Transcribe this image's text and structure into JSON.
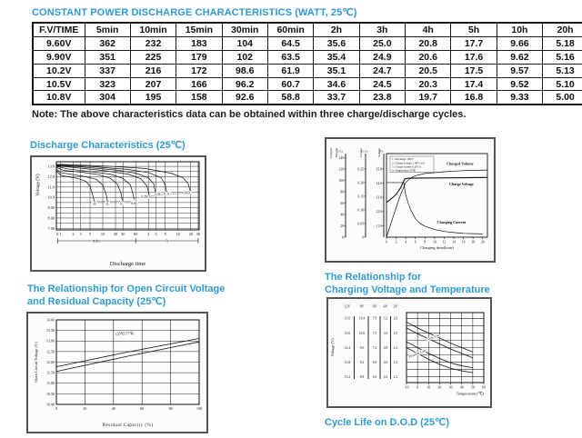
{
  "colors": {
    "accent": "#2E9AD6",
    "ink": "#111111"
  },
  "titles": {
    "page": "CONSTANT POWER DISCHARGE CHARACTERISTICS (WATT, 25℃)",
    "discharge": "Discharge Characteristics (25℃)",
    "ocv_line1": "The Relationship for Open Circuit Voltage",
    "ocv_line2": "and Residual Capacity (25℃)",
    "temp_line1": "The Relationship for",
    "temp_line2": "Charging Voltage and Temperature",
    "cycle_life": "Cycle Life on D.O.D (25℃)"
  },
  "note": "Note: The above characteristics data can be obtained within three charge/discharge cycles.",
  "table": {
    "headers": [
      "F.V/TIME",
      "5min",
      "10min",
      "15min",
      "30min",
      "60min",
      "2h",
      "3h",
      "4h",
      "5h",
      "10h",
      "20h"
    ],
    "rows": [
      [
        "9.60V",
        "362",
        "232",
        "183",
        "104",
        "64.5",
        "35.6",
        "25.0",
        "20.8",
        "17.7",
        "9.66",
        "5.18"
      ],
      [
        "9.90V",
        "351",
        "225",
        "179",
        "102",
        "63.5",
        "35.4",
        "24.9",
        "20.6",
        "17.6",
        "9.62",
        "5.16"
      ],
      [
        "10.2V",
        "337",
        "216",
        "172",
        "98.6",
        "61.9",
        "35.1",
        "24.7",
        "20.5",
        "17.5",
        "9.57",
        "5.13"
      ],
      [
        "10.5V",
        "323",
        "207",
        "166",
        "96.2",
        "60.7",
        "34.6",
        "24.5",
        "20.3",
        "17.4",
        "9.52",
        "5.10"
      ],
      [
        "10.8V",
        "304",
        "195",
        "158",
        "92.6",
        "58.8",
        "33.7",
        "23.8",
        "19.7",
        "16.8",
        "9.33",
        "5.00"
      ]
    ]
  },
  "chart_data": [
    {
      "id": "discharge",
      "type": "line",
      "title": "Discharge Characteristics (25℃)",
      "xlabel": "Discharge time",
      "ylabel": "Voltage (V)",
      "x_sections": [
        "min",
        "h"
      ],
      "origin_label": "0",
      "x_ticks": [
        {
          "t": 1,
          "label": "1"
        },
        {
          "t": 2,
          "label": "2"
        },
        {
          "t": 3,
          "label": "3"
        },
        {
          "t": 5,
          "label": "5"
        },
        {
          "t": 10,
          "label": "10"
        },
        {
          "t": 20,
          "label": "20"
        },
        {
          "t": 30,
          "label": "30"
        },
        {
          "t": 60,
          "label": "60"
        },
        {
          "t": 120,
          "label": "2"
        },
        {
          "t": 180,
          "label": "3"
        },
        {
          "t": 300,
          "label": "5"
        },
        {
          "t": 600,
          "label": "10"
        },
        {
          "t": 1200,
          "label": "20"
        },
        {
          "t": 1800,
          "label": "30"
        }
      ],
      "y_ticks": [
        {
          "v": 13,
          "label": "13.0"
        },
        {
          "v": 12,
          "label": "12.0"
        },
        {
          "v": 11,
          "label": "11.0"
        },
        {
          "v": 10,
          "label": "10.0"
        },
        {
          "v": 9,
          "label": "9.00"
        },
        {
          "v": 8,
          "label": "8.00"
        },
        {
          "v": 7,
          "label": "7.00"
        }
      ],
      "ylim": [
        6.85,
        13.45
      ],
      "series": [
        {
          "name": "3C",
          "points": [
            [
              0.8,
              12.6
            ],
            [
              1,
              12.15
            ],
            [
              1.5,
              12.0
            ],
            [
              2.5,
              11.85
            ],
            [
              4,
              11.55
            ],
            [
              5,
              11.1
            ],
            [
              5.8,
              10.2
            ],
            [
              6.3,
              9.6
            ]
          ]
        },
        {
          "name": "2C",
          "points": [
            [
              0.8,
              12.75
            ],
            [
              1,
              12.4
            ],
            [
              2,
              12.2
            ],
            [
              4,
              12.0
            ],
            [
              7,
              11.75
            ],
            [
              10,
              11.2
            ],
            [
              12,
              10.3
            ],
            [
              13,
              9.6
            ]
          ]
        },
        {
          "name": "1C",
          "points": [
            [
              0.8,
              12.9
            ],
            [
              1.2,
              12.6
            ],
            [
              3,
              12.45
            ],
            [
              8,
              12.2
            ],
            [
              15,
              11.85
            ],
            [
              22,
              11.3
            ],
            [
              27,
              10.4
            ],
            [
              29,
              9.7
            ]
          ]
        },
        {
          "name": "0.6C",
          "points": [
            [
              0.8,
              13.0
            ],
            [
              1.5,
              12.75
            ],
            [
              5,
              12.5
            ],
            [
              15,
              12.25
            ],
            [
              30,
              11.85
            ],
            [
              45,
              11.2
            ],
            [
              52,
              10.3
            ],
            [
              55,
              9.8
            ]
          ]
        },
        {
          "name": "0.25C",
          "points": [
            [
              0.8,
              13.05
            ],
            [
              2,
              12.9
            ],
            [
              10,
              12.6
            ],
            [
              40,
              12.25
            ],
            [
              80,
              11.8
            ],
            [
              110,
              11.1
            ],
            [
              125,
              10.3
            ],
            [
              131,
              10.0
            ]
          ]
        },
        {
          "name": "0.2C",
          "points": [
            [
              0.8,
              13.1
            ],
            [
              3,
              12.95
            ],
            [
              20,
              12.65
            ],
            [
              60,
              12.35
            ],
            [
              120,
              11.9
            ],
            [
              160,
              11.3
            ],
            [
              175,
              10.5
            ],
            [
              181,
              10.25
            ]
          ]
        },
        {
          "name": "0.1C",
          "points": [
            [
              0.8,
              13.15
            ],
            [
              5,
              13.0
            ],
            [
              40,
              12.7
            ],
            [
              120,
              12.4
            ],
            [
              240,
              11.9
            ],
            [
              300,
              11.2
            ],
            [
              322,
              10.6
            ],
            [
              332,
              10.35
            ]
          ]
        },
        {
          "name": "0.05C",
          "points": [
            [
              0.8,
              13.2
            ],
            [
              10,
              13.05
            ],
            [
              100,
              12.8
            ],
            [
              400,
              12.35
            ],
            [
              800,
              11.9
            ],
            [
              1050,
              11.3
            ],
            [
              1150,
              10.7
            ],
            [
              1210,
              10.45
            ]
          ]
        }
      ],
      "curve_labels": [
        {
          "t": 6.5,
          "v": 9.4,
          "text": "3C"
        },
        {
          "t": 13,
          "v": 9.4,
          "text": "2C"
        },
        {
          "t": 28,
          "v": 9.4,
          "text": "1C"
        },
        {
          "t": 56,
          "v": 9.45,
          "text": "0.6C"
        },
        {
          "t": 100,
          "v": 10.05,
          "text": "0.25C"
        },
        {
          "t": 205,
          "v": 10.3,
          "text": "0.2C"
        },
        {
          "t": 335,
          "v": 10.35,
          "text": "0.1C"
        },
        {
          "t": 1000,
          "v": 10.45,
          "text": "0.05C"
        }
      ],
      "dotted_guides": [
        [
          [
            6.5,
            9.6
          ],
          [
            56,
            9.6
          ]
        ],
        [
          [
            110,
            10.1
          ],
          [
            1050,
            10.45
          ]
        ]
      ]
    },
    {
      "id": "charging",
      "type": "line",
      "xlabel": "Charging time(hour)",
      "x_ticks": [
        0,
        2,
        4,
        6,
        8,
        10,
        12,
        14,
        16,
        18,
        20
      ],
      "axes": [
        {
          "name1": "Charged",
          "name2": "Volume",
          "unit": "(%)",
          "ticks": [
            "0",
            "20",
            "40",
            "60",
            "80",
            "100",
            "120",
            "140"
          ]
        },
        {
          "name1": "Current",
          "name2": "",
          "unit": "(CA)",
          "ticks": [
            "0",
            "0.05",
            "0.10",
            "0.15",
            "0.20",
            "0.25"
          ]
        },
        {
          "name1": "Voltage",
          "name2": "",
          "unit": "(V)",
          "ticks": [
            "11.0",
            "12.0",
            "13.0",
            "14.0",
            "15.0"
          ]
        }
      ],
      "notes": [
        "1. Discharge 100%",
        "2. Charge voltage 2.40V/cell",
        "3. Charge current 0.20CA",
        "4. Temperature 25℃"
      ],
      "series": [
        {
          "name": "Charged Volume",
          "axis": "vol",
          "points": [
            [
              0,
              0
            ],
            [
              1,
              26
            ],
            [
              2,
              52
            ],
            [
              3,
              76
            ],
            [
              4,
              96
            ],
            [
              5,
              104
            ],
            [
              6,
              108
            ],
            [
              8,
              112
            ],
            [
              12,
              115
            ],
            [
              16,
              117
            ],
            [
              21,
              118
            ]
          ]
        },
        {
          "name": "Charge Voltage",
          "axis": "volt",
          "points": [
            [
              0,
              12.65
            ],
            [
              1,
              12.9
            ],
            [
              2,
              13.2
            ],
            [
              3,
              13.7
            ],
            [
              3.8,
              14.3
            ],
            [
              4.5,
              14.35
            ],
            [
              21,
              14.4
            ]
          ]
        },
        {
          "name": "Charging Current",
          "axis": "cur",
          "points": [
            [
              0,
              0.2
            ],
            [
              3.6,
              0.2
            ],
            [
              4,
              0.155
            ],
            [
              4.5,
              0.125
            ],
            [
              5,
              0.102
            ],
            [
              6,
              0.068
            ],
            [
              7,
              0.05
            ],
            [
              8,
              0.04
            ],
            [
              10,
              0.028
            ],
            [
              12,
              0.021
            ],
            [
              14,
              0.017
            ],
            [
              16,
              0.014
            ],
            [
              18,
              0.013
            ],
            [
              20,
              0.012
            ]
          ]
        }
      ],
      "series_labels": [
        {
          "text": "Charged Volume",
          "x": 12.5,
          "axis": "vol",
          "v": 127
        },
        {
          "text": "Charge Voltage",
          "x": 13,
          "axis": "volt",
          "v": 13.85
        },
        {
          "text": "Charging Current",
          "x": 10.5,
          "axis": "cur",
          "v": 0.05
        }
      ]
    },
    {
      "id": "ocv",
      "type": "line",
      "title": "The Relationship for Open Circuit Voltage and Residual Capacity (25℃)",
      "xlabel": "Residual Capacity (%)",
      "ylabel": "Open Circuit Voltage (V)",
      "annotation": "(25℃/77℉)",
      "x_ticks": [
        0,
        20,
        40,
        60,
        80,
        100
      ],
      "y_ticks": [
        "14.00",
        "13.50",
        "13.00",
        "12.50",
        "12.00",
        "11.50",
        "11.00",
        "10.50",
        "10.00"
      ],
      "ylim": [
        10,
        14
      ],
      "series": [
        {
          "name": "upper",
          "points": [
            [
              0,
              11.78
            ],
            [
              50,
              12.48
            ],
            [
              100,
              13.12
            ]
          ]
        },
        {
          "name": "lower",
          "points": [
            [
              0,
              11.56
            ],
            [
              50,
              12.28
            ],
            [
              100,
              12.96
            ]
          ]
        }
      ]
    },
    {
      "id": "temp",
      "type": "line",
      "title": "The Relationship for Charging Voltage and Temperature",
      "xlabel": "Temperature (℃)",
      "ylabel": "Voltage (V)",
      "x_ticks": [
        -10,
        0,
        10,
        20,
        30,
        40,
        50,
        60
      ],
      "scale_headers": [
        "12V",
        "8V",
        "6V",
        "4V",
        "2V"
      ],
      "scale_rows": [
        [
          "15.6",
          "10.4",
          "7.8",
          "5.2",
          "2.6"
        ],
        [
          "15.0",
          "10.0",
          "7.5",
          "5.0",
          "2.5"
        ],
        [
          "14.4",
          "9.6",
          "7.2",
          "4.8",
          "2.4"
        ],
        [
          "13.8",
          "9.2",
          "6.9",
          "4.6",
          "2.3"
        ],
        [
          "13.2",
          "8.8",
          "6.6",
          "4.4",
          "2.2"
        ]
      ],
      "band_labels": [
        {
          "text": "Cycle Use",
          "t": 14,
          "v": 2.462
        },
        {
          "text": "Floating Use",
          "t": 0,
          "v": 2.352
        }
      ],
      "series": [
        {
          "name": "cycle-upper",
          "points": [
            [
              -10,
              2.575
            ],
            [
              0,
              2.535
            ],
            [
              10,
              2.5
            ],
            [
              20,
              2.465
            ],
            [
              30,
              2.43
            ],
            [
              40,
              2.4
            ],
            [
              50,
              2.37
            ]
          ]
        },
        {
          "name": "cycle-lower",
          "points": [
            [
              -10,
              2.535
            ],
            [
              0,
              2.495
            ],
            [
              10,
              2.46
            ],
            [
              20,
              2.425
            ],
            [
              30,
              2.39
            ],
            [
              40,
              2.36
            ],
            [
              50,
              2.33
            ]
          ]
        },
        {
          "name": "float-upper",
          "points": [
            [
              -10,
              2.44
            ],
            [
              0,
              2.4
            ],
            [
              10,
              2.36
            ],
            [
              20,
              2.325
            ],
            [
              30,
              2.295
            ],
            [
              40,
              2.275
            ],
            [
              50,
              2.262
            ]
          ]
        },
        {
          "name": "float-lower",
          "points": [
            [
              -10,
              2.4
            ],
            [
              0,
              2.36
            ],
            [
              10,
              2.32
            ],
            [
              20,
              2.285
            ],
            [
              30,
              2.258
            ],
            [
              40,
              2.24
            ],
            [
              50,
              2.228
            ]
          ]
        }
      ]
    }
  ]
}
